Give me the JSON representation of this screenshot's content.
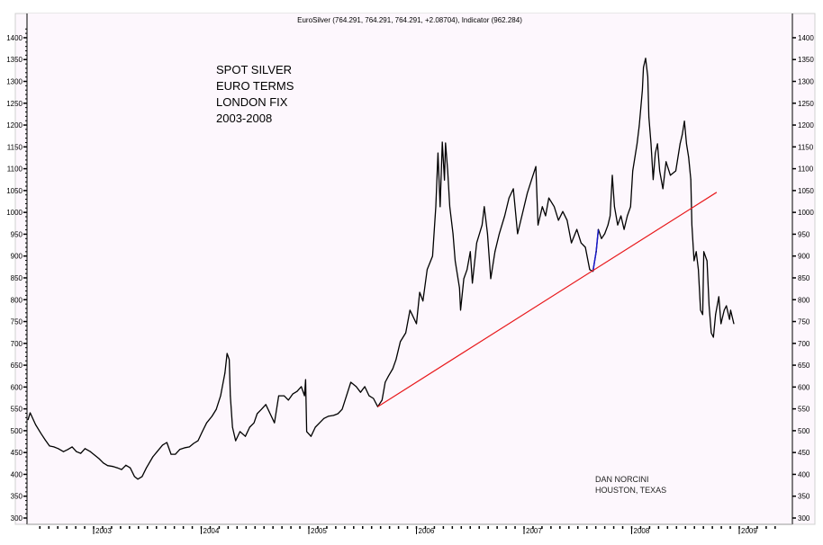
{
  "chart_data": {
    "type": "line",
    "title": "EuroSilver (764.291, 764.291, 764.291, +2.08704), Indicator (962.284)",
    "xlabel": "",
    "ylabel": "",
    "ylim": [
      290,
      1420
    ],
    "xlim": [
      2002.39,
      2009.5
    ],
    "y_ticks": [
      300,
      350,
      400,
      450,
      500,
      550,
      600,
      650,
      700,
      750,
      800,
      850,
      900,
      950,
      1000,
      1050,
      1100,
      1150,
      1200,
      1250,
      1300,
      1350,
      1400
    ],
    "x_ticks": [
      "2003",
      "2004",
      "2005",
      "2006",
      "2007",
      "2008",
      "2009"
    ],
    "grid": false,
    "y_axis_sides": "both",
    "colors": {
      "background": "#fdf7fd",
      "series": "#000000",
      "trendline": "#e8191c",
      "highlight": "#1a1acc"
    },
    "annotation_lines": [
      "SPOT SILVER",
      "EURO TERMS",
      "LONDON FIX",
      "2003-2008"
    ],
    "credit_lines": [
      "DAN NORCINI",
      "HOUSTON, TEXAS"
    ],
    "series": [
      {
        "points": [
          [
            2002.39,
            525
          ],
          [
            2002.41,
            541
          ],
          [
            2002.46,
            514
          ],
          [
            2002.51,
            494
          ],
          [
            2002.55,
            479
          ],
          [
            2002.59,
            465
          ],
          [
            2002.63,
            463
          ],
          [
            2002.67,
            459
          ],
          [
            2002.72,
            452
          ],
          [
            2002.76,
            457
          ],
          [
            2002.8,
            463
          ],
          [
            2002.84,
            452
          ],
          [
            2002.88,
            448
          ],
          [
            2002.92,
            459
          ],
          [
            2002.97,
            452
          ],
          [
            2003.01,
            444
          ],
          [
            2003.05,
            436
          ],
          [
            2003.09,
            426
          ],
          [
            2003.13,
            420
          ],
          [
            2003.18,
            418
          ],
          [
            2003.22,
            415
          ],
          [
            2003.26,
            411
          ],
          [
            2003.3,
            421
          ],
          [
            2003.34,
            415
          ],
          [
            2003.38,
            395
          ],
          [
            2003.41,
            389
          ],
          [
            2003.45,
            395
          ],
          [
            2003.49,
            415
          ],
          [
            2003.55,
            440
          ],
          [
            2003.59,
            452
          ],
          [
            2003.64,
            467
          ],
          [
            2003.68,
            473
          ],
          [
            2003.72,
            446
          ],
          [
            2003.76,
            446
          ],
          [
            2003.8,
            457
          ],
          [
            2003.85,
            461
          ],
          [
            2003.89,
            463
          ],
          [
            2003.93,
            471
          ],
          [
            2003.97,
            477
          ],
          [
            2004.01,
            498
          ],
          [
            2004.05,
            518
          ],
          [
            2004.1,
            533
          ],
          [
            2004.14,
            549
          ],
          [
            2004.18,
            580
          ],
          [
            2004.22,
            632
          ],
          [
            2004.24,
            677
          ],
          [
            2004.26,
            663
          ],
          [
            2004.27,
            580
          ],
          [
            2004.29,
            508
          ],
          [
            2004.32,
            477
          ],
          [
            2004.36,
            498
          ],
          [
            2004.41,
            487
          ],
          [
            2004.45,
            508
          ],
          [
            2004.49,
            518
          ],
          [
            2004.52,
            539
          ],
          [
            2004.56,
            549
          ],
          [
            2004.6,
            560
          ],
          [
            2004.64,
            539
          ],
          [
            2004.68,
            518
          ],
          [
            2004.72,
            580
          ],
          [
            2004.77,
            580
          ],
          [
            2004.81,
            570
          ],
          [
            2004.85,
            584
          ],
          [
            2004.89,
            590
          ],
          [
            2004.93,
            601
          ],
          [
            2004.96,
            580
          ],
          [
            2004.97,
            617
          ],
          [
            2004.98,
            498
          ],
          [
            2005.02,
            487
          ],
          [
            2005.06,
            508
          ],
          [
            2005.1,
            518
          ],
          [
            2005.14,
            528
          ],
          [
            2005.18,
            533
          ],
          [
            2005.23,
            535
          ],
          [
            2005.27,
            539
          ],
          [
            2005.31,
            549
          ],
          [
            2005.35,
            580
          ],
          [
            2005.39,
            611
          ],
          [
            2005.44,
            601
          ],
          [
            2005.48,
            588
          ],
          [
            2005.52,
            601
          ],
          [
            2005.56,
            580
          ],
          [
            2005.6,
            574
          ],
          [
            2005.64,
            555
          ],
          [
            2005.68,
            570
          ],
          [
            2005.71,
            611
          ],
          [
            2005.74,
            625
          ],
          [
            2005.78,
            642
          ],
          [
            2005.81,
            663
          ],
          [
            2005.85,
            704
          ],
          [
            2005.9,
            724
          ],
          [
            2005.94,
            776
          ],
          [
            2005.96,
            766
          ],
          [
            2006.0,
            745
          ],
          [
            2006.03,
            817
          ],
          [
            2006.06,
            797
          ],
          [
            2006.1,
            869
          ],
          [
            2006.15,
            900
          ],
          [
            2006.18,
            1013
          ],
          [
            2006.2,
            1136
          ],
          [
            2006.22,
            1013
          ],
          [
            2006.24,
            1161
          ],
          [
            2006.26,
            1074
          ],
          [
            2006.27,
            1159
          ],
          [
            2006.29,
            1095
          ],
          [
            2006.31,
            1013
          ],
          [
            2006.34,
            951
          ],
          [
            2006.36,
            889
          ],
          [
            2006.4,
            827
          ],
          [
            2006.41,
            776
          ],
          [
            2006.44,
            848
          ],
          [
            2006.47,
            869
          ],
          [
            2006.5,
            910
          ],
          [
            2006.52,
            838
          ],
          [
            2006.56,
            930
          ],
          [
            2006.61,
            971
          ],
          [
            2006.63,
            1013
          ],
          [
            2006.66,
            951
          ],
          [
            2006.69,
            848
          ],
          [
            2006.73,
            910
          ],
          [
            2006.77,
            951
          ],
          [
            2006.82,
            992
          ],
          [
            2006.86,
            1033
          ],
          [
            2006.9,
            1054
          ],
          [
            2006.94,
            951
          ],
          [
            2006.98,
            992
          ],
          [
            2007.03,
            1044
          ],
          [
            2007.07,
            1075
          ],
          [
            2007.11,
            1105
          ],
          [
            2007.13,
            971
          ],
          [
            2007.17,
            1013
          ],
          [
            2007.2,
            992
          ],
          [
            2007.23,
            1033
          ],
          [
            2007.28,
            1013
          ],
          [
            2007.32,
            982
          ],
          [
            2007.36,
            1002
          ],
          [
            2007.4,
            982
          ],
          [
            2007.44,
            930
          ],
          [
            2007.49,
            961
          ],
          [
            2007.53,
            930
          ],
          [
            2007.57,
            920
          ],
          [
            2007.61,
            869
          ],
          [
            2007.64,
            865
          ],
          [
            2007.67,
            910
          ],
          [
            2007.69,
            961
          ],
          [
            2007.72,
            940
          ],
          [
            2007.75,
            951
          ],
          [
            2007.78,
            971
          ],
          [
            2007.8,
            992
          ],
          [
            2007.82,
            1085
          ],
          [
            2007.84,
            1013
          ],
          [
            2007.87,
            971
          ],
          [
            2007.9,
            992
          ],
          [
            2007.93,
            961
          ],
          [
            2007.96,
            992
          ],
          [
            2007.99,
            1013
          ],
          [
            2008.01,
            1095
          ],
          [
            2008.05,
            1157
          ],
          [
            2008.07,
            1198
          ],
          [
            2008.1,
            1280
          ],
          [
            2008.11,
            1332
          ],
          [
            2008.13,
            1353
          ],
          [
            2008.15,
            1311
          ],
          [
            2008.16,
            1219
          ],
          [
            2008.18,
            1157
          ],
          [
            2008.2,
            1075
          ],
          [
            2008.22,
            1136
          ],
          [
            2008.24,
            1157
          ],
          [
            2008.26,
            1095
          ],
          [
            2008.29,
            1054
          ],
          [
            2008.32,
            1116
          ],
          [
            2008.36,
            1085
          ],
          [
            2008.41,
            1095
          ],
          [
            2008.45,
            1157
          ],
          [
            2008.47,
            1178
          ],
          [
            2008.49,
            1209
          ],
          [
            2008.51,
            1157
          ],
          [
            2008.53,
            1126
          ],
          [
            2008.55,
            1075
          ],
          [
            2008.56,
            971
          ],
          [
            2008.58,
            889
          ],
          [
            2008.6,
            910
          ],
          [
            2008.62,
            869
          ],
          [
            2008.64,
            776
          ],
          [
            2008.66,
            766
          ],
          [
            2008.67,
            910
          ],
          [
            2008.7,
            889
          ],
          [
            2008.72,
            786
          ],
          [
            2008.74,
            724
          ],
          [
            2008.76,
            714
          ],
          [
            2008.78,
            766
          ],
          [
            2008.81,
            807
          ],
          [
            2008.83,
            745
          ],
          [
            2008.86,
            776
          ],
          [
            2008.88,
            786
          ],
          [
            2008.91,
            755
          ],
          [
            2008.92,
            776
          ],
          [
            2008.95,
            745
          ]
        ]
      }
    ],
    "highlight_range": [
      2007.64,
      2007.69
    ],
    "trendline": {
      "from": [
        2005.64,
        555
      ],
      "to": [
        2008.79,
        1046
      ]
    }
  }
}
